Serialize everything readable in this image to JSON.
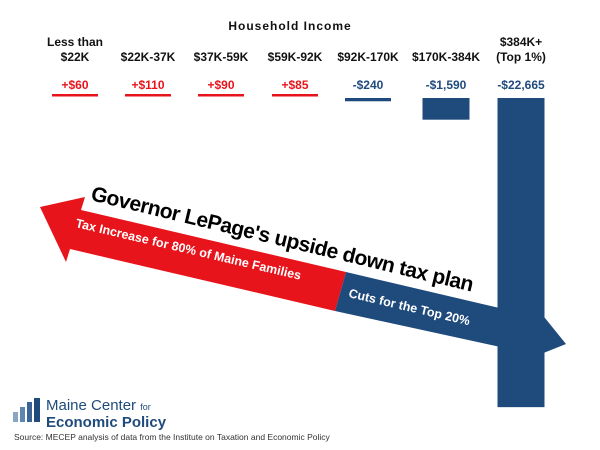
{
  "chart_data": {
    "type": "bar",
    "group_title": "Household Income",
    "categories": [
      [
        "Less than",
        "$22K"
      ],
      [
        "$22K-37K"
      ],
      [
        "$37K-59K"
      ],
      [
        "$59K-92K"
      ],
      [
        "$92K-170K"
      ],
      [
        "$170K-384K"
      ],
      [
        "$384K+",
        "(Top 1%)"
      ]
    ],
    "values": [
      60,
      110,
      90,
      85,
      -240,
      -1590,
      -22665
    ],
    "value_labels": [
      "+$60",
      "+$110",
      "+$90",
      "+$85",
      "-$240",
      "-$1,590",
      "-$22,665"
    ],
    "colors": {
      "increase": "#e8141b",
      "cut": "#1f4a7c"
    },
    "headline": "Governor LePage's upside down tax plan",
    "arrow_left_text": "Tax Increase for 80% of Maine Families",
    "arrow_right_text": "Cuts for the Top 20%"
  },
  "footer": {
    "logo_line1": "Maine Center",
    "logo_for": "for",
    "logo_line2": "Economic Policy",
    "logo_icon": "maine-center-logo-icon",
    "source": "Source: MECEP analysis of data from the Institute on Taxation and Economic Policy"
  }
}
